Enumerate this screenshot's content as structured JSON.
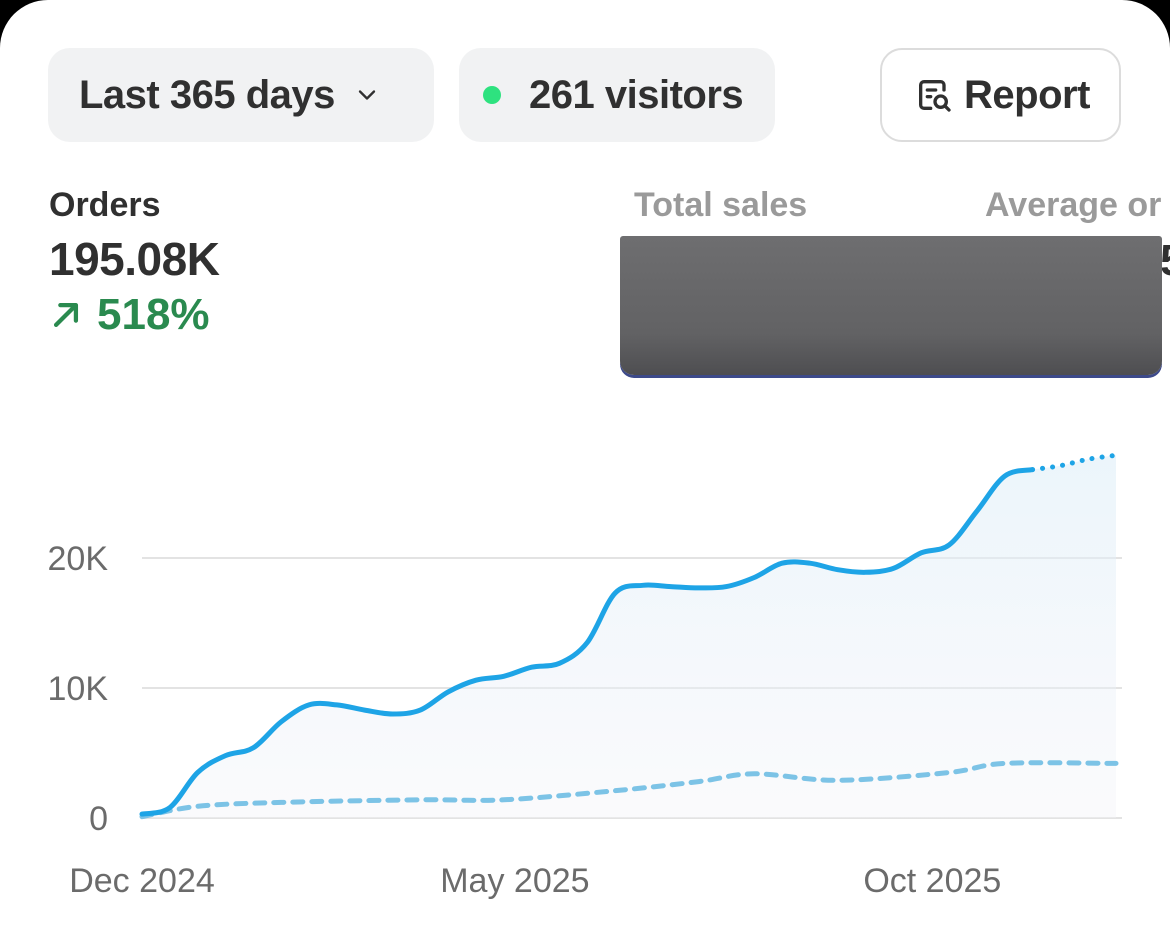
{
  "filters": {
    "date_range_label": "Last 365 days",
    "visitors_label": "261 visitors",
    "live_dot_color": "#2ee27f",
    "report_label": "Report",
    "icons": {
      "range": "chevron-down-icon",
      "report": "report-search-icon"
    }
  },
  "metrics": {
    "orders": {
      "label": "Orders",
      "value": "195.08K",
      "change": "518%",
      "trend": "up",
      "trend_color": "#2a8a4f"
    },
    "total_sales": {
      "label": "Total sales",
      "value_redacted": true
    },
    "average_order": {
      "label": "Average or",
      "value_partial": "5"
    }
  },
  "chart_data": {
    "type": "line",
    "title": "",
    "xlabel": "",
    "ylabel": "",
    "x_ticks": [
      "Dec 2024",
      "May 2025",
      "Oct 2025"
    ],
    "y_ticks": [
      "0",
      "10K",
      "20K"
    ],
    "ylim": [
      0,
      30000
    ],
    "grid": true,
    "legend": "none",
    "series": [
      {
        "style": "solid",
        "color": "#1ea4e6",
        "values": [
          [
            0,
            300
          ],
          [
            1,
            800
          ],
          [
            2,
            3500
          ],
          [
            3,
            4800
          ],
          [
            4,
            5400
          ],
          [
            5,
            7400
          ],
          [
            6,
            8700
          ],
          [
            7,
            8700
          ],
          [
            8,
            8300
          ],
          [
            9,
            8000
          ],
          [
            10,
            8300
          ],
          [
            11,
            9700
          ],
          [
            12,
            10600
          ],
          [
            13,
            10900
          ],
          [
            14,
            11600
          ],
          [
            15,
            11900
          ],
          [
            16,
            13500
          ],
          [
            17,
            17300
          ],
          [
            18,
            17900
          ],
          [
            19,
            17800
          ],
          [
            20,
            17700
          ],
          [
            21,
            17800
          ],
          [
            22,
            18500
          ],
          [
            23,
            19600
          ],
          [
            24,
            19600
          ],
          [
            25,
            19100
          ],
          [
            26,
            18900
          ],
          [
            27,
            19200
          ],
          [
            28,
            20400
          ],
          [
            29,
            21000
          ],
          [
            30,
            23600
          ],
          [
            31,
            26300
          ],
          [
            32,
            26800
          ]
        ]
      },
      {
        "style": "dotted",
        "role": "projection",
        "color": "#1ea4e6",
        "values": [
          [
            32,
            26800
          ],
          [
            33,
            27100
          ],
          [
            34,
            27600
          ],
          [
            35,
            27900
          ]
        ]
      },
      {
        "style": "dashed",
        "role": "comparison",
        "color": "#7cc3e6",
        "values": [
          [
            0,
            100
          ],
          [
            2,
            900
          ],
          [
            5,
            1200
          ],
          [
            10,
            1400
          ],
          [
            13,
            1400
          ],
          [
            17,
            2100
          ],
          [
            20,
            2800
          ],
          [
            22,
            3400
          ],
          [
            25,
            2900
          ],
          [
            29,
            3500
          ],
          [
            31,
            4200
          ],
          [
            35,
            4200
          ]
        ]
      }
    ]
  }
}
